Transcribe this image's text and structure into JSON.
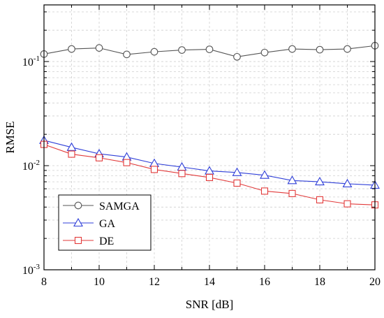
{
  "chart_data": {
    "type": "line",
    "title": "",
    "xlabel": "SNR [dB]",
    "ylabel": "RMSE",
    "x": [
      8,
      9,
      10,
      11,
      12,
      13,
      14,
      15,
      16,
      17,
      18,
      19,
      20
    ],
    "xlim": [
      8,
      20
    ],
    "ylim": [
      0.001,
      0.35
    ],
    "yscale": "log",
    "xticks": [
      "8",
      "10",
      "12",
      "14",
      "16",
      "18",
      "20"
    ],
    "yticks": [
      {
        "base": "10",
        "exp": "-3"
      },
      {
        "base": "10",
        "exp": "-2"
      },
      {
        "base": "10",
        "exp": "-1"
      }
    ],
    "grid": true,
    "legend_position": "bottom-left",
    "series": [
      {
        "name": "SAMGA",
        "color": "#555555",
        "marker": "circle",
        "values": [
          0.118,
          0.132,
          0.135,
          0.117,
          0.124,
          0.129,
          0.131,
          0.111,
          0.122,
          0.132,
          0.13,
          0.132,
          0.142
        ]
      },
      {
        "name": "GA",
        "color": "#2f3fd8",
        "marker": "triangle",
        "values": [
          0.0175,
          0.015,
          0.013,
          0.0121,
          0.0105,
          0.0097,
          0.0089,
          0.0086,
          0.0081,
          0.0072,
          0.007,
          0.0067,
          0.0065
        ]
      },
      {
        "name": "DE",
        "color": "#e23a3a",
        "marker": "square",
        "values": [
          0.016,
          0.0129,
          0.0119,
          0.0107,
          0.0092,
          0.0084,
          0.0077,
          0.0068,
          0.0057,
          0.0054,
          0.0047,
          0.0043,
          0.0042
        ]
      }
    ]
  }
}
